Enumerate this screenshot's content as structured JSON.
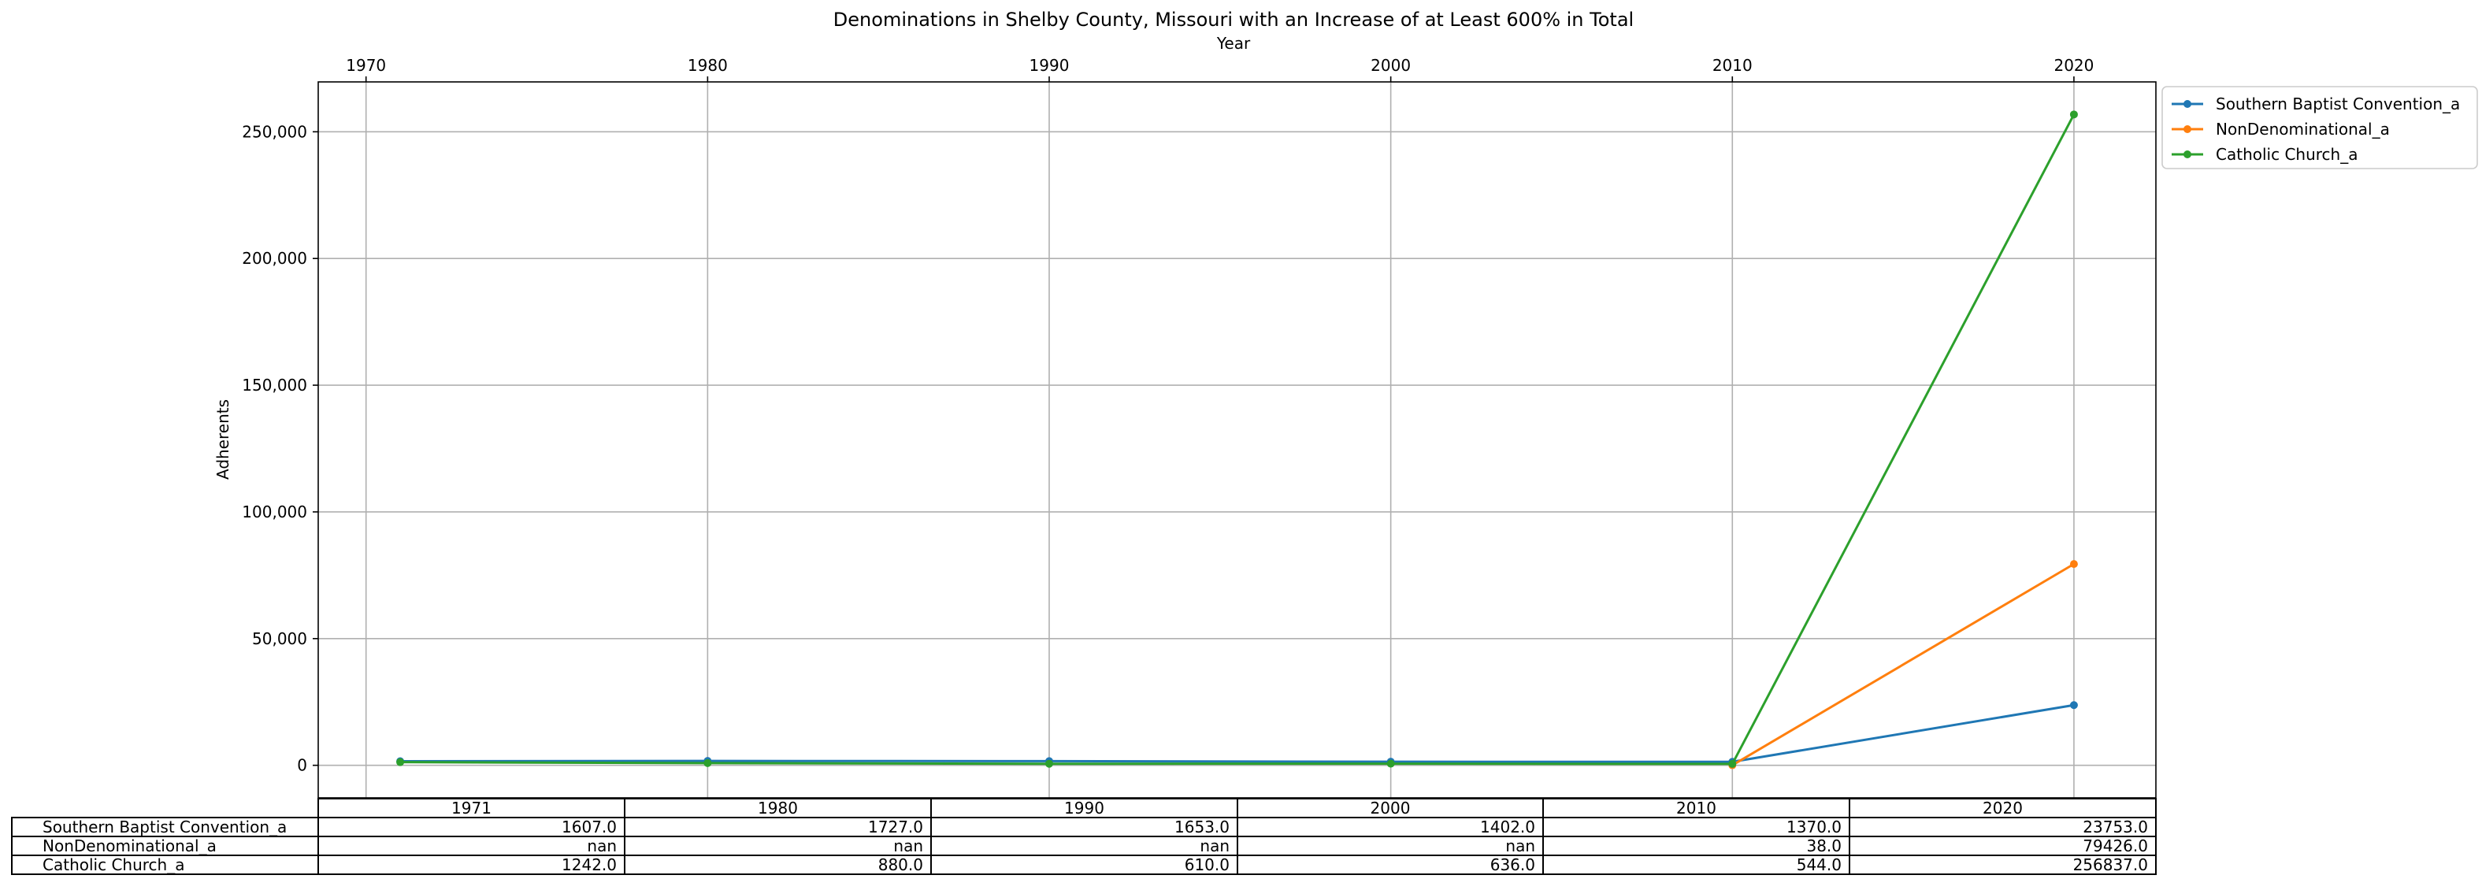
{
  "chart_data": {
    "type": "line",
    "title": "Denominations in Shelby County, Missouri with an Increase of at Least 600% in Total",
    "xlabel": "Year",
    "ylabel": "Adherents",
    "x_ticks": [
      1970,
      1980,
      1990,
      2000,
      2010,
      2020
    ],
    "x_tick_labels": [
      "1970",
      "1980",
      "1990",
      "2000",
      "2010",
      "2020"
    ],
    "y_ticks": [
      0,
      50000,
      100000,
      150000,
      200000,
      250000
    ],
    "y_tick_labels": [
      "0",
      "50,000",
      "100,000",
      "150,000",
      "200,000",
      "250,000"
    ],
    "xlim": [
      1968.6,
      2022.4
    ],
    "ylim": [
      -12842,
      269679
    ],
    "grid": true,
    "legend_position": "outside-top-right",
    "x": [
      1971,
      1980,
      1990,
      2000,
      2010,
      2020
    ],
    "series": [
      {
        "name": "Southern Baptist Convention_a",
        "color": "#1f77b4",
        "values": [
          1607,
          1727,
          1653,
          1402,
          1370,
          23753
        ]
      },
      {
        "name": "NonDenominational_a",
        "color": "#ff7f0e",
        "values": [
          null,
          null,
          null,
          null,
          38,
          79426
        ]
      },
      {
        "name": "Catholic Church_a",
        "color": "#2ca02c",
        "values": [
          1242,
          880,
          610,
          636,
          544,
          256837
        ]
      }
    ],
    "table": {
      "columns": [
        "1971",
        "1980",
        "1990",
        "2000",
        "2010",
        "2020"
      ],
      "rows": [
        {
          "label": "Southern Baptist Convention_a",
          "cells": [
            "1607.0",
            "1727.0",
            "1653.0",
            "1402.0",
            "1370.0",
            "23753.0"
          ]
        },
        {
          "label": "NonDenominational_a",
          "cells": [
            "nan",
            "nan",
            "nan",
            "nan",
            "38.0",
            "79426.0"
          ]
        },
        {
          "label": "Catholic Church_a",
          "cells": [
            "1242.0",
            "880.0",
            "610.0",
            "636.0",
            "544.0",
            "256837.0"
          ]
        }
      ]
    }
  }
}
